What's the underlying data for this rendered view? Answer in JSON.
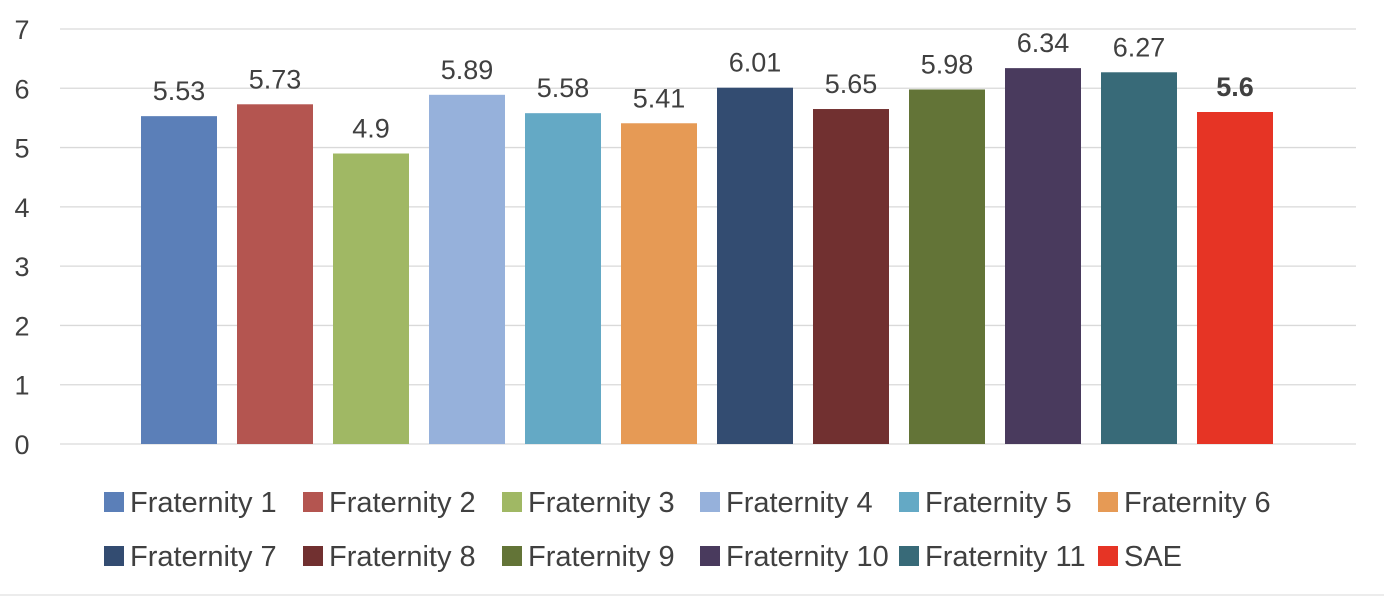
{
  "chart_data": {
    "type": "bar",
    "title": "",
    "xlabel": "",
    "ylabel": "",
    "ylim": [
      0,
      7
    ],
    "yticks": [
      "0",
      "1",
      "2",
      "3",
      "4",
      "5",
      "6",
      "7"
    ],
    "grid": true,
    "legend_position": "bottom",
    "categories": [
      "Fraternity 1",
      "Fraternity 2",
      "Fraternity 3",
      "Fraternity 4",
      "Fraternity 5",
      "Fraternity 6",
      "Fraternity 7",
      "Fraternity 8",
      "Fraternity 9",
      "Fraternity 10",
      "Fraternity 11",
      "SAE"
    ],
    "values": [
      5.53,
      5.73,
      4.9,
      5.89,
      5.58,
      5.41,
      6.01,
      5.65,
      5.98,
      6.34,
      6.27,
      5.6
    ],
    "value_labels": [
      "5.53",
      "5.73",
      "4.9",
      "5.89",
      "5.58",
      "5.41",
      "6.01",
      "5.65",
      "5.98",
      "6.34",
      "6.27",
      "5.6"
    ],
    "highlighted": "SAE",
    "colors": [
      "#5b7fb8",
      "#b45550",
      "#a0b864",
      "#96b1db",
      "#64a9c5",
      "#e69a55",
      "#334c71",
      "#713030",
      "#637437",
      "#493a5d",
      "#386a78",
      "#e63425"
    ]
  }
}
